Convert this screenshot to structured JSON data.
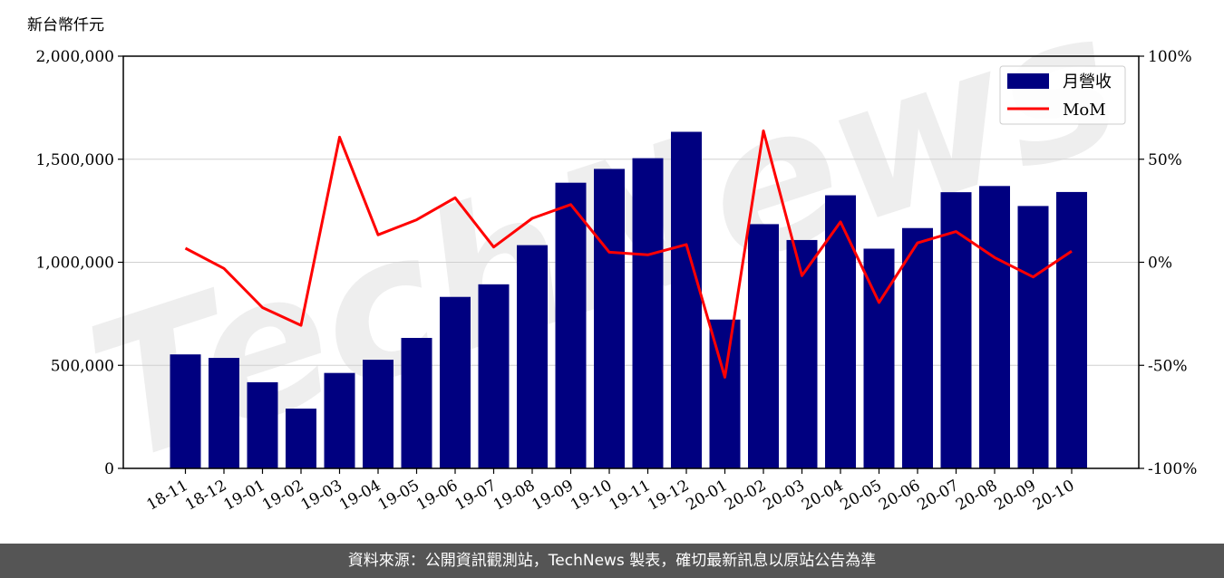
{
  "chart_data": {
    "type": "bar",
    "y_unit_label": "新台幣仟元",
    "categories": [
      "18-11",
      "18-12",
      "19-01",
      "19-02",
      "19-03",
      "19-04",
      "19-05",
      "19-06",
      "19-07",
      "19-08",
      "19-09",
      "19-10",
      "19-11",
      "19-12",
      "20-01",
      "20-02",
      "20-03",
      "20-04",
      "20-05",
      "20-06",
      "20-07",
      "20-08",
      "20-09",
      "20-10"
    ],
    "series": [
      {
        "name": "月營收",
        "type": "bar",
        "axis": "left",
        "color": "#000080",
        "values": [
          553000,
          536000,
          418000,
          290000,
          463000,
          527000,
          633000,
          832000,
          893000,
          1083000,
          1386000,
          1453000,
          1505000,
          1633000,
          722000,
          1185000,
          1108000,
          1325000,
          1066000,
          1166000,
          1340000,
          1370000,
          1273000,
          1341000
        ]
      },
      {
        "name": "MoM",
        "type": "line",
        "axis": "right",
        "color": "#ff0000",
        "values": [
          6.8,
          -3.0,
          -22.0,
          -30.6,
          60.7,
          13.3,
          20.6,
          31.3,
          7.4,
          21.3,
          28.0,
          4.9,
          3.6,
          8.6,
          -55.8,
          63.8,
          -6.5,
          19.6,
          -19.5,
          9.4,
          14.9,
          2.3,
          -7.1,
          5.4
        ]
      }
    ],
    "y_left": {
      "min": 0,
      "max": 2000000,
      "ticks": [
        0,
        500000,
        1000000,
        1500000,
        2000000
      ],
      "tick_labels": [
        "0",
        "500,000",
        "1,000,000",
        "1,500,000",
        "2,000,000"
      ]
    },
    "y_right": {
      "min": -100,
      "max": 100,
      "ticks": [
        -100,
        -50,
        0,
        50,
        100
      ],
      "tick_labels": [
        "-100%",
        "-50%",
        "0%",
        "50%",
        "100%"
      ]
    },
    "grid": "horizontal",
    "legend": "top-right"
  },
  "watermark": "TechNews",
  "footer": {
    "source_text": "資料來源：公開資訊觀測站，TechNews 製表，確切最新訊息以原站公告為準"
  }
}
